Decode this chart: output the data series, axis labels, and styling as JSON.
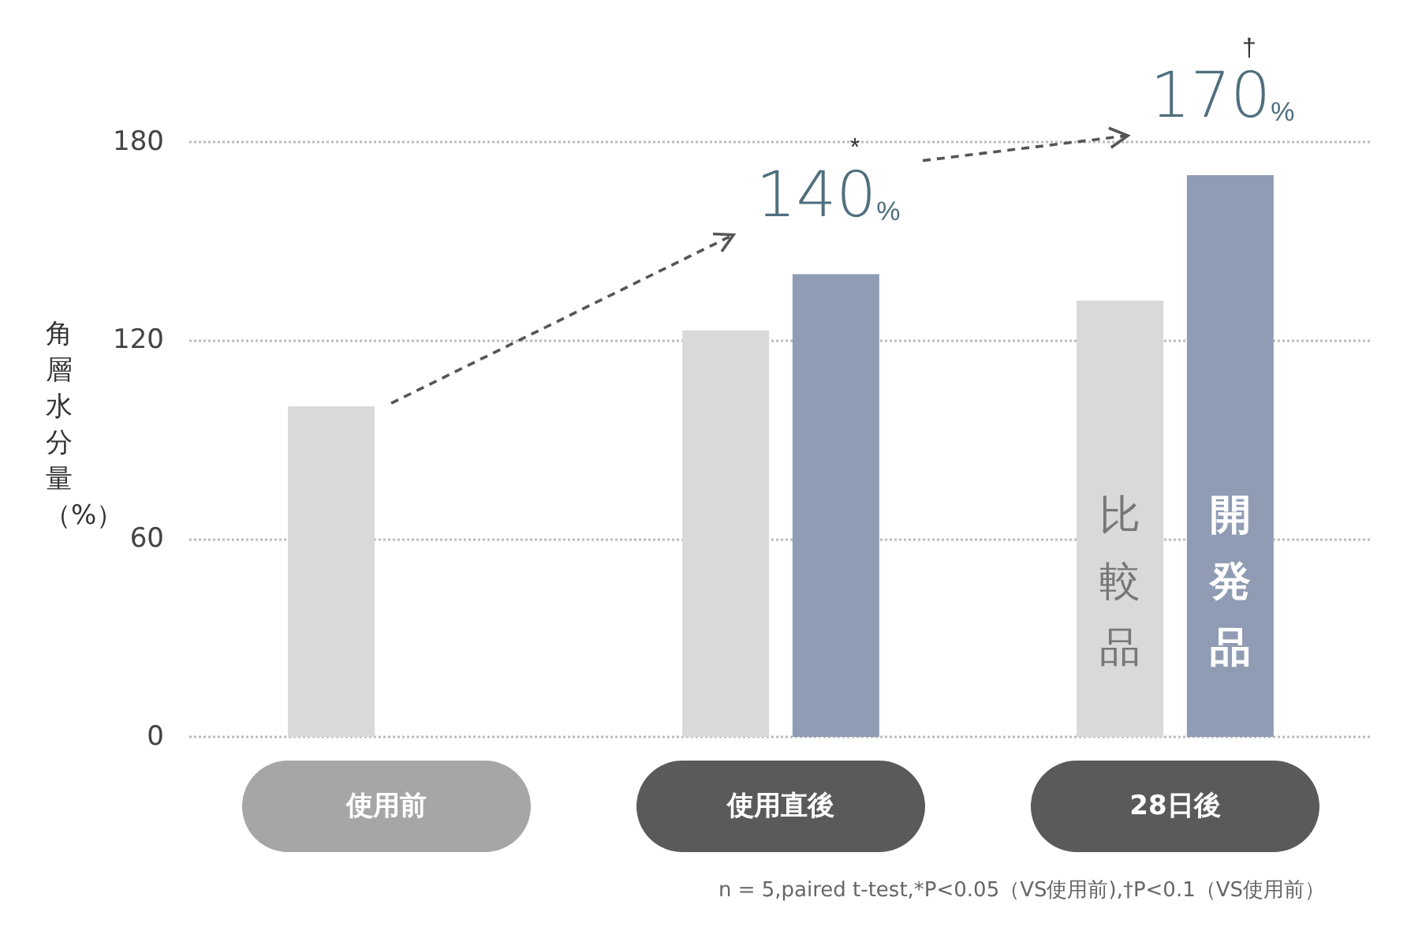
{
  "chart_data": {
    "type": "bar",
    "ylabel": "角層水分量（%）",
    "categories": [
      "使用前",
      "使用直後",
      "28日後"
    ],
    "series": [
      {
        "name": "比較品",
        "color": "#d9d9d9",
        "values": [
          100,
          123,
          132
        ]
      },
      {
        "name": "開発品",
        "color": "#8f9cb3",
        "values": [
          null,
          140,
          170
        ]
      }
    ],
    "ylim": [
      0,
      180
    ],
    "yticks": [
      0,
      60,
      120,
      180
    ],
    "grid": "y",
    "legend": false,
    "annotations": [
      "140%",
      "*",
      "170%",
      "†",
      "n = 5,paired t-test,*P<0.05（VS使用前),†P<0.1（VS使用前）"
    ]
  }
}
